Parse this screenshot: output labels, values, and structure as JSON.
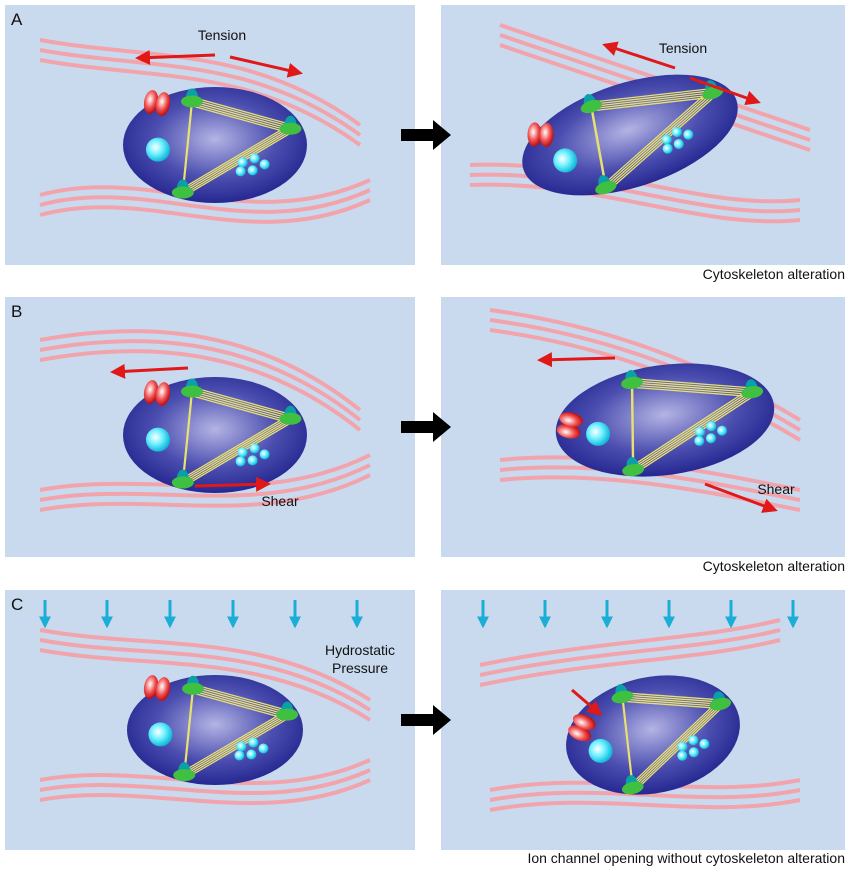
{
  "panels": [
    {
      "letter": "A",
      "before_label": "Tension",
      "after_label": "Tension",
      "caption": "Cytoskeleton alteration"
    },
    {
      "letter": "B",
      "before_label": "Shear",
      "after_label": "Shear",
      "caption": "Cytoskeleton alteration"
    },
    {
      "letter": "C",
      "before_label_lines": [
        "Hydrostatic",
        "Pressure"
      ],
      "caption": "Ion channel opening without cytoskeleton alteration"
    }
  ]
}
